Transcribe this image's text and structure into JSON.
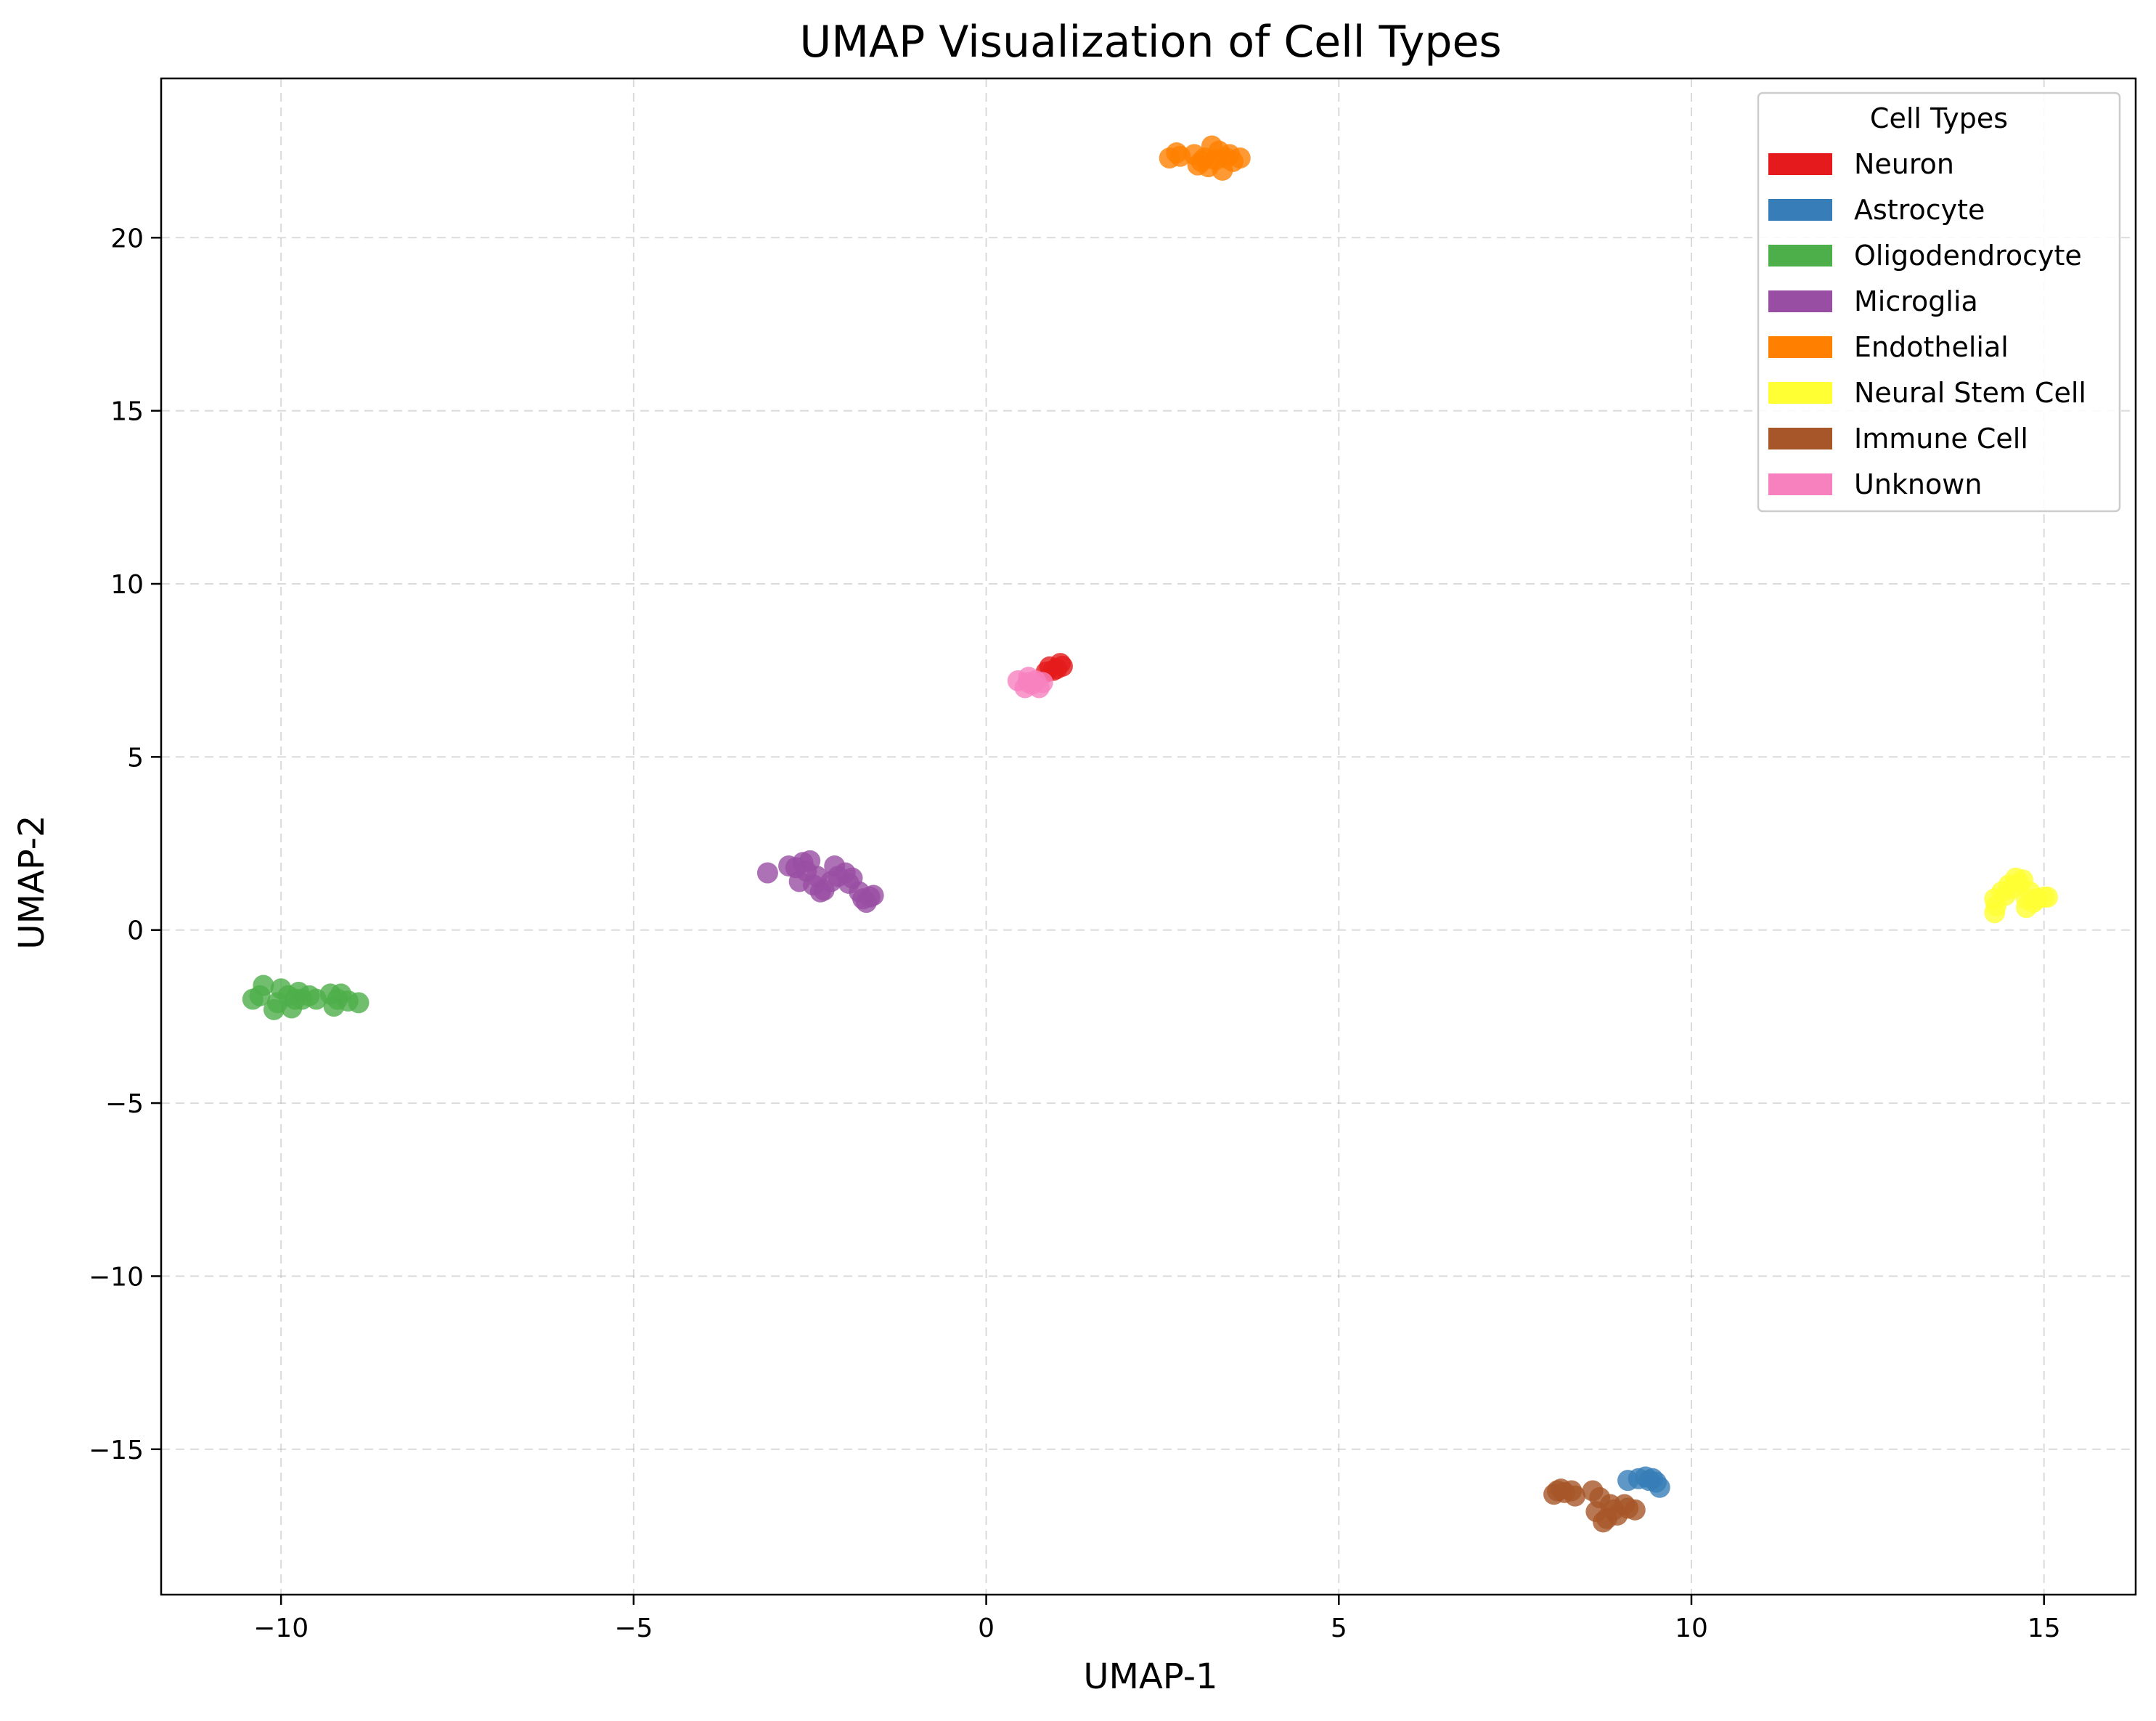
{
  "chart_data": {
    "type": "scatter",
    "title": "UMAP Visualization of Cell Types",
    "xlabel": "UMAP-1",
    "ylabel": "UMAP-2",
    "xlim": [
      -11.7,
      16.3
    ],
    "ylim": [
      -19.2,
      24.6
    ],
    "xticks": [
      -10,
      -5,
      0,
      5,
      10,
      15
    ],
    "yticks": [
      -15,
      -10,
      -5,
      0,
      5,
      10,
      15,
      20
    ],
    "grid": true,
    "legend_title": "Cell Types",
    "legend_position": "top-right",
    "series": [
      {
        "name": "Neuron",
        "color": "#e41a1c",
        "points": [
          [
            0.9,
            7.6
          ],
          [
            1.0,
            7.55
          ],
          [
            1.05,
            7.7
          ],
          [
            0.95,
            7.5
          ],
          [
            1.08,
            7.62
          ],
          [
            0.85,
            7.45
          ]
        ]
      },
      {
        "name": "Astrocyte",
        "color": "#377eb8",
        "points": [
          [
            9.1,
            -15.9
          ],
          [
            9.25,
            -15.85
          ],
          [
            9.35,
            -15.8
          ],
          [
            9.45,
            -15.85
          ],
          [
            9.5,
            -15.95
          ],
          [
            9.55,
            -16.1
          ],
          [
            9.4,
            -15.9
          ]
        ]
      },
      {
        "name": "Oligodendrocyte",
        "color": "#4daf4a",
        "points": [
          [
            -10.4,
            -2.0
          ],
          [
            -10.3,
            -1.9
          ],
          [
            -10.25,
            -1.6
          ],
          [
            -10.1,
            -2.3
          ],
          [
            -10.05,
            -2.1
          ],
          [
            -10.0,
            -1.7
          ],
          [
            -9.9,
            -1.9
          ],
          [
            -9.85,
            -2.25
          ],
          [
            -9.8,
            -2.0
          ],
          [
            -9.75,
            -1.8
          ],
          [
            -9.7,
            -2.0
          ],
          [
            -9.6,
            -1.9
          ],
          [
            -9.5,
            -2.0
          ],
          [
            -9.3,
            -1.85
          ],
          [
            -9.25,
            -2.2
          ],
          [
            -9.2,
            -2.0
          ],
          [
            -9.15,
            -1.85
          ],
          [
            -9.05,
            -2.05
          ],
          [
            -8.9,
            -2.1
          ]
        ]
      },
      {
        "name": "Microglia",
        "color": "#984ea3",
        "points": [
          [
            -3.1,
            1.65
          ],
          [
            -2.8,
            1.85
          ],
          [
            -2.7,
            1.8
          ],
          [
            -2.65,
            1.4
          ],
          [
            -2.6,
            1.95
          ],
          [
            -2.55,
            1.7
          ],
          [
            -2.5,
            2.0
          ],
          [
            -2.45,
            1.3
          ],
          [
            -2.4,
            1.55
          ],
          [
            -2.35,
            1.1
          ],
          [
            -2.3,
            1.15
          ],
          [
            -2.2,
            1.4
          ],
          [
            -2.15,
            1.85
          ],
          [
            -2.1,
            1.55
          ],
          [
            -2.0,
            1.65
          ],
          [
            -1.95,
            1.35
          ],
          [
            -1.9,
            1.5
          ],
          [
            -1.8,
            1.1
          ],
          [
            -1.7,
            0.8
          ],
          [
            -1.65,
            0.95
          ],
          [
            -1.6,
            1.0
          ],
          [
            -1.75,
            0.9
          ]
        ]
      },
      {
        "name": "Endothelial",
        "color": "#ff7f00",
        "points": [
          [
            2.6,
            22.3
          ],
          [
            2.7,
            22.45
          ],
          [
            2.75,
            22.35
          ],
          [
            2.95,
            22.4
          ],
          [
            3.0,
            22.1
          ],
          [
            3.05,
            22.2
          ],
          [
            3.1,
            22.3
          ],
          [
            3.15,
            22.05
          ],
          [
            3.2,
            22.65
          ],
          [
            3.3,
            22.5
          ],
          [
            3.35,
            21.95
          ],
          [
            3.4,
            22.3
          ],
          [
            3.45,
            22.4
          ],
          [
            3.5,
            22.2
          ],
          [
            3.6,
            22.3
          ],
          [
            3.25,
            22.25
          ]
        ]
      },
      {
        "name": "Neural Stem Cell",
        "color": "#ffff33",
        "points": [
          [
            14.3,
            0.5
          ],
          [
            14.3,
            0.9
          ],
          [
            14.32,
            0.7
          ],
          [
            14.4,
            1.1
          ],
          [
            14.45,
            1.0
          ],
          [
            14.5,
            1.3
          ],
          [
            14.55,
            1.2
          ],
          [
            14.6,
            1.5
          ],
          [
            14.65,
            1.35
          ],
          [
            14.7,
            1.45
          ],
          [
            14.75,
            0.9
          ],
          [
            14.8,
            1.1
          ],
          [
            14.85,
            0.8
          ],
          [
            14.9,
            0.9
          ],
          [
            15.0,
            0.95
          ],
          [
            15.05,
            0.95
          ],
          [
            14.75,
            0.65
          ]
        ]
      },
      {
        "name": "Immune Cell",
        "color": "#a65628",
        "points": [
          [
            8.05,
            -16.3
          ],
          [
            8.1,
            -16.2
          ],
          [
            8.15,
            -16.15
          ],
          [
            8.2,
            -16.25
          ],
          [
            8.3,
            -16.2
          ],
          [
            8.35,
            -16.35
          ],
          [
            8.6,
            -16.2
          ],
          [
            8.65,
            -16.8
          ],
          [
            8.7,
            -16.4
          ],
          [
            8.75,
            -17.1
          ],
          [
            8.8,
            -17.0
          ],
          [
            8.85,
            -16.6
          ],
          [
            8.95,
            -16.9
          ],
          [
            9.05,
            -16.6
          ],
          [
            9.1,
            -16.7
          ],
          [
            9.2,
            -16.75
          ],
          [
            8.9,
            -16.75
          ]
        ]
      },
      {
        "name": "Unknown",
        "color": "#f781bf",
        "points": [
          [
            0.45,
            7.2
          ],
          [
            0.55,
            7.0
          ],
          [
            0.6,
            7.3
          ],
          [
            0.65,
            7.1
          ],
          [
            0.7,
            7.2
          ],
          [
            0.75,
            7.0
          ],
          [
            0.8,
            7.15
          ],
          [
            0.6,
            7.15
          ]
        ]
      }
    ]
  }
}
